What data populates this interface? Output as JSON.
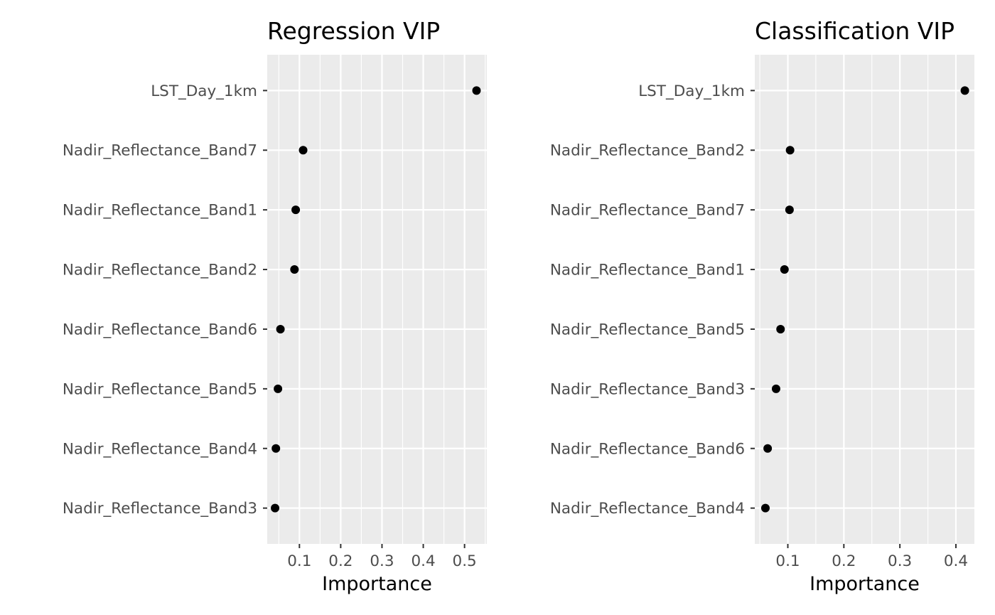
{
  "chart_data": [
    {
      "type": "scatter",
      "title": "Regression VIP",
      "xlabel": "Importance",
      "ylabel": "",
      "xlim": [
        0.022,
        0.554
      ],
      "xticks": [
        0.1,
        0.2,
        0.3,
        0.4,
        0.5
      ],
      "xtick_labels": [
        "0.1",
        "0.2",
        "0.3",
        "0.4",
        "0.5"
      ],
      "grid": true,
      "categories": [
        "LST_Day_1km",
        "Nadir_Reflectance_Band7",
        "Nadir_Reflectance_Band1",
        "Nadir_Reflectance_Band2",
        "Nadir_Reflectance_Band6",
        "Nadir_Reflectance_Band5",
        "Nadir_Reflectance_Band4",
        "Nadir_Reflectance_Band3"
      ],
      "values": [
        0.529,
        0.109,
        0.091,
        0.088,
        0.054,
        0.048,
        0.043,
        0.041
      ],
      "colors": {
        "panel": "#ebebeb",
        "grid": "#ffffff",
        "point": "#000000"
      }
    },
    {
      "type": "scatter",
      "title": "Classification VIP",
      "xlabel": "Importance",
      "ylabel": "",
      "xlim": [
        0.041,
        0.433
      ],
      "xticks": [
        0.1,
        0.2,
        0.3,
        0.4
      ],
      "xtick_labels": [
        "0.1",
        "0.2",
        "0.3",
        "0.4"
      ],
      "grid": true,
      "categories": [
        "LST_Day_1km",
        "Nadir_Reflectance_Band2",
        "Nadir_Reflectance_Band7",
        "Nadir_Reflectance_Band1",
        "Nadir_Reflectance_Band5",
        "Nadir_Reflectance_Band3",
        "Nadir_Reflectance_Band6",
        "Nadir_Reflectance_Band4"
      ],
      "values": [
        0.416,
        0.104,
        0.103,
        0.094,
        0.087,
        0.079,
        0.064,
        0.06
      ],
      "colors": {
        "panel": "#ebebeb",
        "grid": "#ffffff",
        "point": "#000000"
      }
    }
  ]
}
